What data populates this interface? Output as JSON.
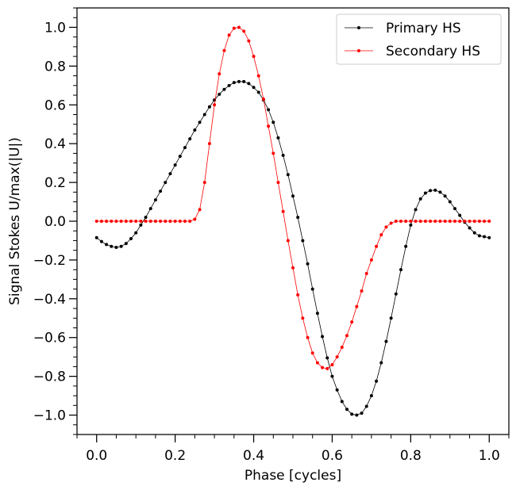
{
  "chart_data": {
    "type": "line",
    "xlabel": "Phase [cycles]",
    "ylabel": "Signal Stokes U/max(|U|)",
    "xlim": [
      -0.05,
      1.05
    ],
    "ylim": [
      -1.1,
      1.1
    ],
    "xticks": [
      0.0,
      0.2,
      0.4,
      0.6,
      0.8,
      1.0
    ],
    "xtick_labels": [
      "0.0",
      "0.2",
      "0.4",
      "0.6",
      "0.8",
      "1.0"
    ],
    "yticks": [
      -1.0,
      -0.8,
      -0.6,
      -0.4,
      -0.2,
      0.0,
      0.2,
      0.4,
      0.6,
      0.8,
      1.0
    ],
    "ytick_labels": [
      "−1.0",
      "−0.8",
      "−0.6",
      "−0.4",
      "−0.2",
      "0.0",
      "0.2",
      "0.4",
      "0.6",
      "0.8",
      "1.0"
    ],
    "grid": false,
    "legend_position": "top-right",
    "series": [
      {
        "name": "Primary HS",
        "color": "#000000",
        "x": [
          0.0,
          0.0125,
          0.025,
          0.0375,
          0.05,
          0.0625,
          0.075,
          0.0875,
          0.1,
          0.1125,
          0.125,
          0.1375,
          0.15,
          0.1625,
          0.175,
          0.1875,
          0.2,
          0.2125,
          0.225,
          0.2375,
          0.25,
          0.2625,
          0.275,
          0.2875,
          0.3,
          0.3125,
          0.325,
          0.3375,
          0.35,
          0.3625,
          0.375,
          0.3875,
          0.4,
          0.4125,
          0.425,
          0.4375,
          0.45,
          0.4625,
          0.475,
          0.4875,
          0.5,
          0.5125,
          0.525,
          0.5375,
          0.55,
          0.5625,
          0.575,
          0.5875,
          0.6,
          0.6125,
          0.625,
          0.6375,
          0.65,
          0.6625,
          0.675,
          0.6875,
          0.7,
          0.7125,
          0.725,
          0.7375,
          0.75,
          0.7625,
          0.775,
          0.7875,
          0.8,
          0.8125,
          0.825,
          0.8375,
          0.85,
          0.8625,
          0.875,
          0.8875,
          0.9,
          0.9125,
          0.925,
          0.9375,
          0.95,
          0.9625,
          0.975,
          0.9875,
          1.0
        ],
        "values": [
          -0.085,
          -0.105,
          -0.12,
          -0.13,
          -0.135,
          -0.13,
          -0.115,
          -0.09,
          -0.06,
          -0.02,
          0.02,
          0.065,
          0.11,
          0.155,
          0.2,
          0.245,
          0.29,
          0.335,
          0.38,
          0.425,
          0.47,
          0.51,
          0.55,
          0.59,
          0.625,
          0.655,
          0.68,
          0.7,
          0.715,
          0.72,
          0.72,
          0.71,
          0.69,
          0.665,
          0.625,
          0.575,
          0.51,
          0.43,
          0.34,
          0.24,
          0.13,
          0.02,
          -0.1,
          -0.22,
          -0.35,
          -0.475,
          -0.595,
          -0.705,
          -0.8,
          -0.87,
          -0.93,
          -0.97,
          -0.995,
          -1.0,
          -0.99,
          -0.955,
          -0.9,
          -0.825,
          -0.73,
          -0.62,
          -0.5,
          -0.375,
          -0.25,
          -0.13,
          -0.02,
          0.06,
          0.115,
          0.145,
          0.158,
          0.16,
          0.15,
          0.13,
          0.1,
          0.065,
          0.03,
          -0.005,
          -0.035,
          -0.06,
          -0.075,
          -0.08,
          -0.085
        ]
      },
      {
        "name": "Secondary HS",
        "color": "#ff0000",
        "x": [
          0.0,
          0.0125,
          0.025,
          0.0375,
          0.05,
          0.0625,
          0.075,
          0.0875,
          0.1,
          0.1125,
          0.125,
          0.1375,
          0.15,
          0.1625,
          0.175,
          0.1875,
          0.2,
          0.2125,
          0.225,
          0.2375,
          0.25,
          0.2625,
          0.275,
          0.2875,
          0.3,
          0.3125,
          0.325,
          0.3375,
          0.35,
          0.3625,
          0.375,
          0.3875,
          0.4,
          0.4125,
          0.425,
          0.4375,
          0.45,
          0.4625,
          0.475,
          0.4875,
          0.5,
          0.5125,
          0.525,
          0.5375,
          0.55,
          0.5625,
          0.575,
          0.5875,
          0.6,
          0.6125,
          0.625,
          0.6375,
          0.65,
          0.6625,
          0.675,
          0.6875,
          0.7,
          0.7125,
          0.725,
          0.7375,
          0.75,
          0.7625,
          0.775,
          0.7875,
          0.8,
          0.8125,
          0.825,
          0.8375,
          0.85,
          0.8625,
          0.875,
          0.8875,
          0.9,
          0.9125,
          0.925,
          0.9375,
          0.95,
          0.9625,
          0.975,
          0.9875,
          1.0
        ],
        "values": [
          0.0,
          0.0,
          0.0,
          0.0,
          0.0,
          0.0,
          0.0,
          0.0,
          0.0,
          0.0,
          0.0,
          0.0,
          0.0,
          0.0,
          0.0,
          0.0,
          0.0,
          0.0,
          0.0,
          0.0,
          0.01,
          0.06,
          0.2,
          0.4,
          0.6,
          0.76,
          0.88,
          0.96,
          0.995,
          1.0,
          0.98,
          0.93,
          0.85,
          0.75,
          0.63,
          0.49,
          0.35,
          0.2,
          0.05,
          -0.1,
          -0.24,
          -0.38,
          -0.5,
          -0.6,
          -0.68,
          -0.73,
          -0.755,
          -0.76,
          -0.74,
          -0.7,
          -0.65,
          -0.59,
          -0.52,
          -0.44,
          -0.36,
          -0.27,
          -0.2,
          -0.13,
          -0.07,
          -0.03,
          -0.01,
          0.0,
          0.0,
          0.0,
          0.0,
          0.0,
          0.0,
          0.0,
          0.0,
          0.0,
          0.0,
          0.0,
          0.0,
          0.0,
          0.0,
          0.0,
          0.0,
          0.0,
          0.0,
          0.0,
          0.0
        ]
      }
    ]
  }
}
